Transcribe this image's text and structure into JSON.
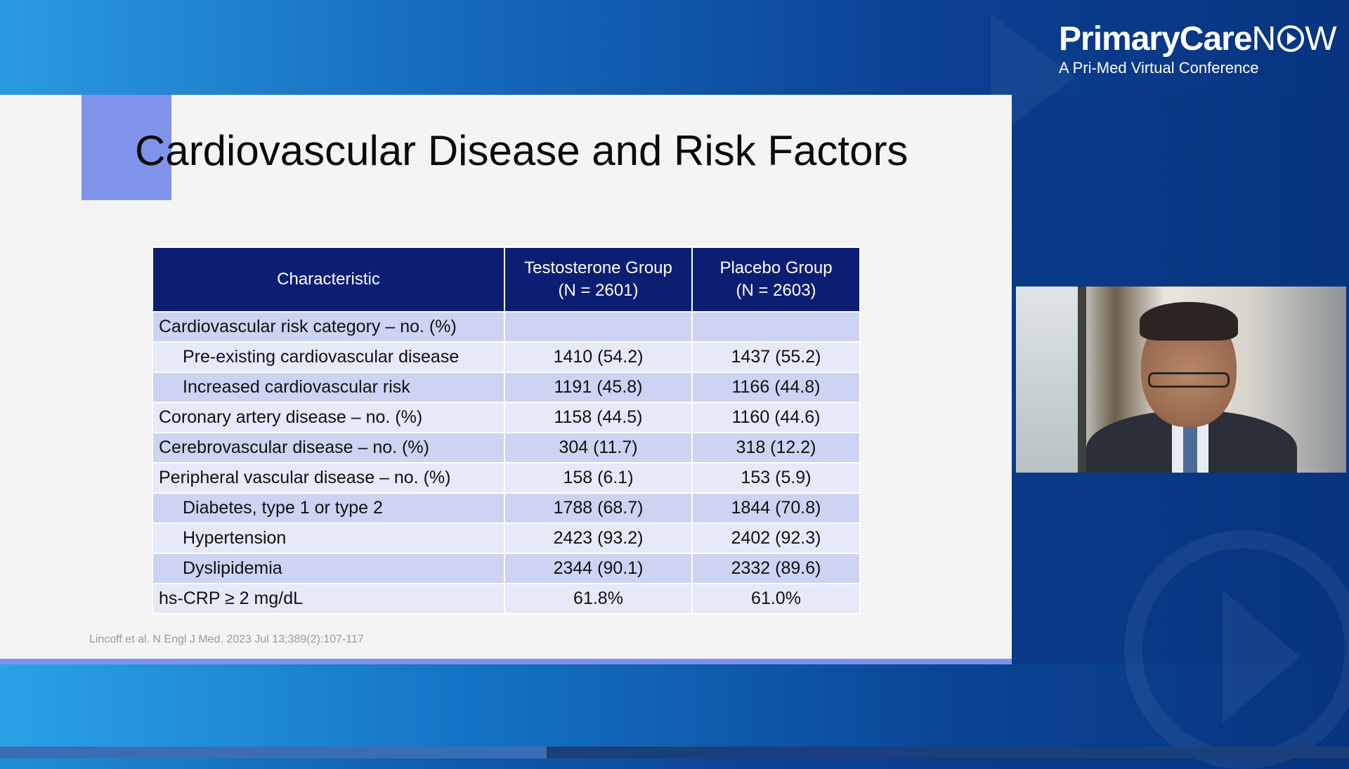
{
  "branding": {
    "logo_primary": "PrimaryCare",
    "logo_n": "N",
    "logo_w": "W",
    "logo_subtitle": "A Pri-Med Virtual Conference"
  },
  "slide": {
    "title": "Cardiovascular Disease and Risk Factors",
    "citation": "Lincoff et al. N Engl J Med. 2023 Jul 13;389(2):107-117",
    "table": {
      "headers": [
        "Characteristic",
        "Testosterone Group\n(N = 2601)",
        "Placebo Group\n(N = 2603)"
      ],
      "header_lines": {
        "col2_line1": "Testosterone Group",
        "col2_line2": "(N = 2601)",
        "col3_line1": "Placebo Group",
        "col3_line2": "(N = 2603)"
      },
      "rows": [
        {
          "label": "Cardiovascular risk category – no. (%)",
          "testosterone": "",
          "placebo": ""
        },
        {
          "label": "Pre-existing cardiovascular disease",
          "testosterone": "1410 (54.2)",
          "placebo": "1437 (55.2)"
        },
        {
          "label": "Increased cardiovascular risk",
          "testosterone": "1191 (45.8)",
          "placebo": "1166 (44.8)"
        },
        {
          "label": "Coronary artery disease – no. (%)",
          "testosterone": "1158 (44.5)",
          "placebo": "1160 (44.6)"
        },
        {
          "label": "Cerebrovascular disease – no. (%)",
          "testosterone": "304 (11.7)",
          "placebo": "318 (12.2)"
        },
        {
          "label": "Peripheral vascular disease – no. (%)",
          "testosterone": "158 (6.1)",
          "placebo": "153 (5.9)"
        },
        {
          "label": "Diabetes, type 1 or type 2",
          "testosterone": "1788 (68.7)",
          "placebo": "1844 (70.8)"
        },
        {
          "label": "Hypertension",
          "testosterone": "2423 (93.2)",
          "placebo": "2402 (92.3)"
        },
        {
          "label": "Dyslipidemia",
          "testosterone": "2344 (90.1)",
          "placebo": "2332 (89.6)"
        },
        {
          "label": "hs-CRP ≥ 2 mg/dL",
          "testosterone": "61.8%",
          "placebo": "61.0%"
        }
      ]
    }
  },
  "video": {
    "icon": "speaker-video-feed"
  },
  "playback": {
    "progress_fraction": 0.405
  },
  "colors": {
    "header_navy": "#0b1e73",
    "row_dark": "#cdd3f3",
    "row_light": "#e6e9f8",
    "accent": "#7f93ea"
  }
}
